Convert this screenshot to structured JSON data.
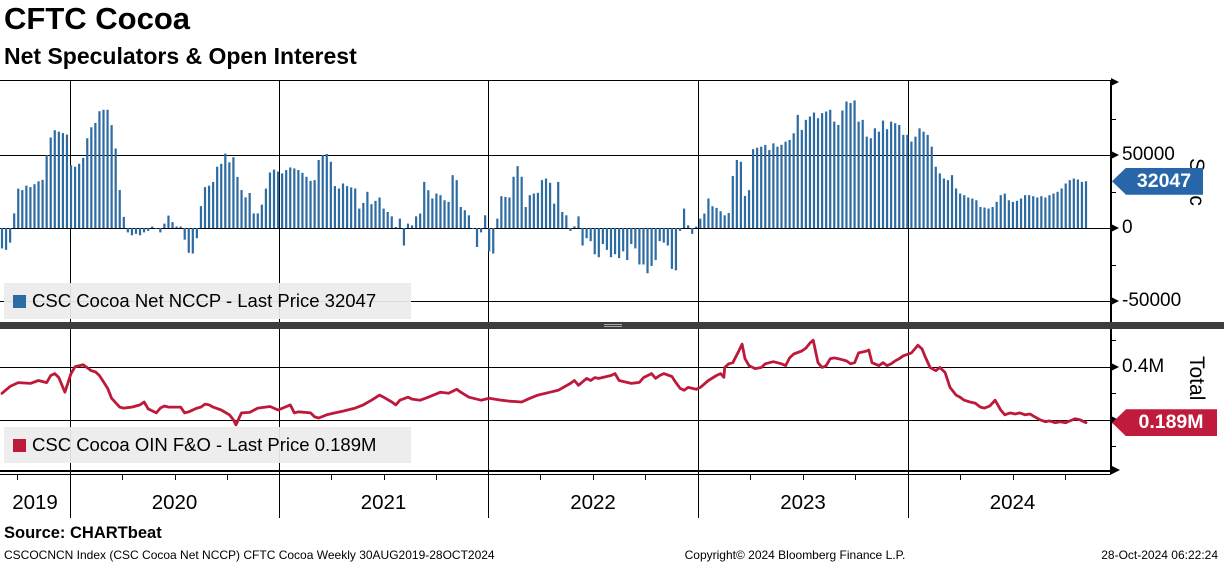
{
  "header": {
    "title": "CFTC Cocoa",
    "subtitle": "Net Speculators & Open Interest"
  },
  "colors": {
    "bar_blue": "#2d6ba3",
    "line_red": "#bd1a3b",
    "badge_spec_bg": "#2766a8",
    "badge_total_bg": "#c01b3c",
    "separator": "#3d3d3d",
    "legend_bg": "#ececec"
  },
  "x_axis": {
    "years": [
      "2019",
      "2020",
      "2021",
      "2022",
      "2023",
      "2024"
    ]
  },
  "chart_data": [
    {
      "type": "bar",
      "panel": "top",
      "legend": "CSC Cocoa Net NCCP - Last Price 32047",
      "axis_label": "Spec",
      "last_price": 32047,
      "last_price_label": "32047",
      "frequency": "Weekly",
      "range": "30AUG2019-28OCT2024",
      "ylim": [
        -64400,
        101400
      ],
      "yticks_major": [
        {
          "v": 50000,
          "label": "50000"
        },
        {
          "v": 0,
          "label": "0"
        },
        {
          "v": -50000,
          "label": "-50000"
        }
      ],
      "yticks_minor": [
        75000,
        25000,
        -25000
      ],
      "values": [
        -14000,
        -15000,
        -10000,
        10000,
        27000,
        26000,
        29000,
        28000,
        30000,
        32000,
        33000,
        50000,
        62000,
        67000,
        66000,
        65000,
        64000,
        43000,
        42000,
        44000,
        48000,
        61500,
        69000,
        72000,
        80000,
        81000,
        81000,
        70500,
        54500,
        26000,
        7600,
        -3000,
        -5000,
        -4000,
        -5000,
        -3000,
        -2000,
        1000,
        0,
        -3000,
        3000,
        8500,
        4000,
        1000,
        1000,
        -8000,
        -17000,
        -17500,
        -7000,
        15000,
        28000,
        29000,
        31500,
        42000,
        44000,
        51000,
        45000,
        48500,
        35000,
        26000,
        21000,
        24000,
        10000,
        10000,
        16000,
        27000,
        38000,
        40000,
        38700,
        37400,
        39700,
        41500,
        40800,
        39700,
        37800,
        35100,
        32300,
        32800,
        46600,
        50000,
        50700,
        45400,
        28700,
        27100,
        30500,
        28700,
        27800,
        27100,
        13300,
        17200,
        24800,
        16300,
        18600,
        20900,
        13300,
        11000,
        8000,
        700,
        6400,
        -12000,
        3000,
        1800,
        8000,
        9900,
        31600,
        25900,
        20200,
        23600,
        22500,
        19000,
        17900,
        36200,
        32800,
        14400,
        12200,
        8700,
        -500,
        -13000,
        -3000,
        8700,
        -16000,
        -17500,
        6400,
        21800,
        21300,
        20900,
        35100,
        42400,
        35100,
        14400,
        22500,
        23600,
        24100,
        32800,
        33900,
        31000,
        16700,
        31600,
        11000,
        8700,
        -2000,
        1100,
        8000,
        -12000,
        -7000,
        -9000,
        -18000,
        -20000,
        -11000,
        -15000,
        -20000,
        -18000,
        -20600,
        -16000,
        -22000,
        -11000,
        -14000,
        -25000,
        -25000,
        -31000,
        -26000,
        -22000,
        -9000,
        -10000,
        -12000,
        -28000,
        -29000,
        -2000,
        13300,
        1800,
        -4000,
        1000,
        6400,
        9900,
        20200,
        14900,
        13800,
        11500,
        8700,
        10300,
        35600,
        46600,
        45400,
        22000,
        25900,
        54000,
        55000,
        55700,
        56900,
        53400,
        58000,
        55700,
        57000,
        59200,
        60300,
        64900,
        77500,
        67200,
        74100,
        76400,
        79100,
        75200,
        78700,
        79800,
        81000,
        72900,
        70600,
        80500,
        86700,
        85600,
        87400,
        72900,
        74100,
        62600,
        61500,
        68300,
        66000,
        73600,
        67700,
        72900,
        71800,
        70600,
        63800,
        63800,
        59200,
        62600,
        68300,
        66000,
        63800,
        55700,
        42000,
        37400,
        33900,
        32800,
        36200,
        27100,
        23600,
        22500,
        20900,
        20200,
        19000,
        14400,
        14000,
        13300,
        14400,
        17900,
        22500,
        23600,
        19000,
        17900,
        18600,
        20200,
        22500,
        22500,
        21800,
        20900,
        21800,
        20900,
        22500,
        23600,
        24800,
        27100,
        30500,
        32800,
        33900,
        33200,
        31600,
        32047
      ]
    },
    {
      "type": "line",
      "panel": "bottom",
      "legend": "CSC Cocoa OIN F&O - Last Price 0.189M",
      "axis_label": "Total",
      "last_price": 0.189,
      "last_price_label": "0.189M",
      "ylim": [
        0.011,
        0.542
      ],
      "yticks_major": [
        {
          "v": 0.4,
          "label": "0.4M"
        },
        {
          "v": 0.2,
          "label": "0.2M"
        }
      ],
      "yticks_minor": [
        0.5,
        0.3,
        0.1
      ],
      "points": [
        [
          0,
          0.3
        ],
        [
          2,
          0.326
        ],
        [
          4,
          0.34
        ],
        [
          7,
          0.337
        ],
        [
          9,
          0.348
        ],
        [
          11,
          0.34
        ],
        [
          12,
          0.367
        ],
        [
          13,
          0.374
        ],
        [
          14,
          0.359
        ],
        [
          15.5,
          0.304
        ],
        [
          17,
          0.374
        ],
        [
          18,
          0.4
        ],
        [
          20,
          0.407
        ],
        [
          22,
          0.385
        ],
        [
          23,
          0.381
        ],
        [
          24,
          0.367
        ],
        [
          26,
          0.319
        ],
        [
          27,
          0.281
        ],
        [
          29,
          0.248
        ],
        [
          30,
          0.244
        ],
        [
          32,
          0.248
        ],
        [
          34,
          0.256
        ],
        [
          35,
          0.267
        ],
        [
          36,
          0.241
        ],
        [
          38,
          0.226
        ],
        [
          39,
          0.244
        ],
        [
          40,
          0.252
        ],
        [
          41,
          0.248
        ],
        [
          43,
          0.248
        ],
        [
          44,
          0.248
        ],
        [
          45,
          0.226
        ],
        [
          46,
          0.23
        ],
        [
          48,
          0.244
        ],
        [
          49,
          0.248
        ],
        [
          50,
          0.259
        ],
        [
          51,
          0.256
        ],
        [
          52,
          0.248
        ],
        [
          54,
          0.237
        ],
        [
          56,
          0.219
        ],
        [
          57,
          0.2
        ],
        [
          57.6,
          0.181
        ],
        [
          59,
          0.226
        ],
        [
          61,
          0.228
        ],
        [
          63,
          0.244
        ],
        [
          66,
          0.25
        ],
        [
          68,
          0.237
        ],
        [
          71,
          0.256
        ],
        [
          72,
          0.226
        ],
        [
          73,
          0.23
        ],
        [
          76,
          0.226
        ],
        [
          77,
          0.211
        ],
        [
          78,
          0.207
        ],
        [
          80,
          0.219
        ],
        [
          82,
          0.226
        ],
        [
          84,
          0.233
        ],
        [
          87,
          0.244
        ],
        [
          89,
          0.256
        ],
        [
          91,
          0.274
        ],
        [
          93,
          0.293
        ],
        [
          94,
          0.285
        ],
        [
          96,
          0.267
        ],
        [
          97,
          0.256
        ],
        [
          98,
          0.274
        ],
        [
          100,
          0.285
        ],
        [
          101,
          0.278
        ],
        [
          103,
          0.274
        ],
        [
          105,
          0.285
        ],
        [
          108,
          0.304
        ],
        [
          110,
          0.3
        ],
        [
          112,
          0.315
        ],
        [
          113,
          0.304
        ],
        [
          115,
          0.285
        ],
        [
          118,
          0.274
        ],
        [
          120,
          0.281
        ],
        [
          123,
          0.274
        ],
        [
          125,
          0.27
        ],
        [
          128,
          0.267
        ],
        [
          130,
          0.281
        ],
        [
          132,
          0.293
        ],
        [
          135,
          0.304
        ],
        [
          137,
          0.311
        ],
        [
          140,
          0.337
        ],
        [
          141,
          0.348
        ],
        [
          142,
          0.33
        ],
        [
          144,
          0.356
        ],
        [
          145,
          0.348
        ],
        [
          146,
          0.359
        ],
        [
          147,
          0.356
        ],
        [
          150,
          0.367
        ],
        [
          151,
          0.374
        ],
        [
          152,
          0.348
        ],
        [
          155,
          0.337
        ],
        [
          157,
          0.341
        ],
        [
          158,
          0.359
        ],
        [
          160,
          0.374
        ],
        [
          161,
          0.356
        ],
        [
          162,
          0.367
        ],
        [
          163,
          0.374
        ],
        [
          165,
          0.363
        ],
        [
          166,
          0.34
        ],
        [
          167,
          0.319
        ],
        [
          168,
          0.311
        ],
        [
          169,
          0.322
        ],
        [
          171,
          0.315
        ],
        [
          172,
          0.322
        ],
        [
          174,
          0.348
        ],
        [
          176,
          0.367
        ],
        [
          177,
          0.374
        ],
        [
          177.8,
          0.36
        ],
        [
          178,
          0.397
        ],
        [
          179,
          0.411
        ],
        [
          180,
          0.415
        ],
        [
          181.5,
          0.46
        ],
        [
          182.3,
          0.485
        ],
        [
          183,
          0.43
        ],
        [
          184,
          0.404
        ],
        [
          185.5,
          0.393
        ],
        [
          187,
          0.397
        ],
        [
          188,
          0.411
        ],
        [
          189,
          0.415
        ],
        [
          190,
          0.419
        ],
        [
          192,
          0.411
        ],
        [
          193,
          0.404
        ],
        [
          194,
          0.433
        ],
        [
          195,
          0.448
        ],
        [
          197,
          0.459
        ],
        [
          198,
          0.47
        ],
        [
          199,
          0.489
        ],
        [
          199.8,
          0.5
        ],
        [
          201,
          0.415
        ],
        [
          202,
          0.397
        ],
        [
          203,
          0.404
        ],
        [
          204,
          0.43
        ],
        [
          205,
          0.433
        ],
        [
          206,
          0.43
        ],
        [
          208,
          0.422
        ],
        [
          209,
          0.411
        ],
        [
          210,
          0.415
        ],
        [
          211,
          0.452
        ],
        [
          213,
          0.459
        ],
        [
          213.5,
          0.463
        ],
        [
          214.3,
          0.415
        ],
        [
          216,
          0.404
        ],
        [
          217,
          0.415
        ],
        [
          218,
          0.404
        ],
        [
          219,
          0.411
        ],
        [
          220,
          0.422
        ],
        [
          221,
          0.43
        ],
        [
          222,
          0.441
        ],
        [
          224,
          0.452
        ],
        [
          225,
          0.47
        ],
        [
          225.6,
          0.481
        ],
        [
          226.6,
          0.467
        ],
        [
          227.3,
          0.441
        ],
        [
          228.6,
          0.397
        ],
        [
          230,
          0.385
        ],
        [
          231,
          0.397
        ],
        [
          232.3,
          0.378
        ],
        [
          233.5,
          0.322
        ],
        [
          235,
          0.293
        ],
        [
          236,
          0.285
        ],
        [
          237,
          0.274
        ],
        [
          238.4,
          0.267
        ],
        [
          239.7,
          0.263
        ],
        [
          241,
          0.248
        ],
        [
          242,
          0.244
        ],
        [
          243.3,
          0.252
        ],
        [
          244.6,
          0.274
        ],
        [
          246,
          0.237
        ],
        [
          247,
          0.219
        ],
        [
          248.3,
          0.226
        ],
        [
          249.5,
          0.222
        ],
        [
          250.7,
          0.226
        ],
        [
          252,
          0.219
        ],
        [
          253.2,
          0.222
        ],
        [
          254.4,
          0.211
        ],
        [
          255.7,
          0.2
        ],
        [
          257,
          0.193
        ],
        [
          258,
          0.196
        ],
        [
          259.4,
          0.189
        ],
        [
          260.6,
          0.193
        ],
        [
          262,
          0.189
        ],
        [
          263,
          0.196
        ],
        [
          264.3,
          0.204
        ],
        [
          265.5,
          0.2
        ],
        [
          267,
          0.189
        ]
      ]
    }
  ],
  "footer": {
    "source": "Source: CHARTbeat",
    "left": "CSCOCNCN Index (CSC Cocoa Net NCCP) CFTC Cocoa  Weekly 30AUG2019-28OCT2024",
    "center": "Copyright© 2024 Bloomberg Finance L.P.",
    "right": "28-Oct-2024 06:22:24"
  }
}
